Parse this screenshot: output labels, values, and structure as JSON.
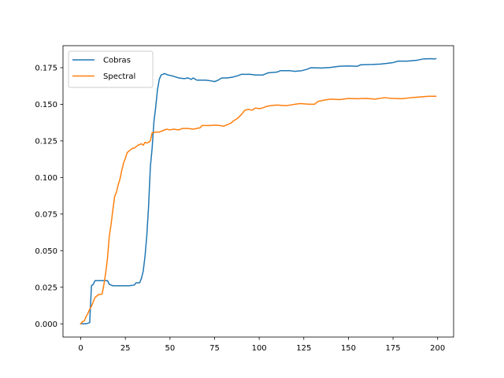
{
  "chart_data": {
    "type": "line",
    "title": "",
    "xlabel": "",
    "ylabel": "",
    "xlim": [
      -9.95,
      208.95
    ],
    "ylim": [
      -0.00905,
      0.19005
    ],
    "xticks": [
      0,
      25,
      50,
      75,
      100,
      125,
      150,
      175,
      200
    ],
    "yticks": [
      0.0,
      0.025,
      0.05,
      0.075,
      0.1,
      0.125,
      0.15,
      0.175
    ],
    "ytick_labels": [
      "0.000",
      "0.025",
      "0.050",
      "0.075",
      "0.100",
      "0.125",
      "0.150",
      "0.175"
    ],
    "grid": false,
    "legend_position": "upper-left",
    "series": [
      {
        "name": "Cobras",
        "color": "#1f77b4",
        "points": [
          [
            0,
            0.0
          ],
          [
            3,
            0.0
          ],
          [
            5,
            0.0008
          ],
          [
            6,
            0.026
          ],
          [
            7,
            0.027
          ],
          [
            8,
            0.0295
          ],
          [
            10,
            0.0295
          ],
          [
            13,
            0.0295
          ],
          [
            15,
            0.0295
          ],
          [
            16,
            0.027
          ],
          [
            18,
            0.026
          ],
          [
            22,
            0.026
          ],
          [
            27,
            0.026
          ],
          [
            30,
            0.0265
          ],
          [
            31,
            0.028
          ],
          [
            33,
            0.028
          ],
          [
            34,
            0.031
          ],
          [
            35,
            0.036
          ],
          [
            36,
            0.046
          ],
          [
            37,
            0.06
          ],
          [
            38,
            0.08
          ],
          [
            39,
            0.107
          ],
          [
            40,
            0.12
          ],
          [
            41,
            0.138
          ],
          [
            42,
            0.148
          ],
          [
            43,
            0.16
          ],
          [
            44,
            0.167
          ],
          [
            45,
            0.17
          ],
          [
            47,
            0.171
          ],
          [
            49,
            0.17
          ],
          [
            51,
            0.1695
          ],
          [
            55,
            0.168
          ],
          [
            58,
            0.1675
          ],
          [
            60,
            0.168
          ],
          [
            62,
            0.167
          ],
          [
            63,
            0.168
          ],
          [
            65,
            0.1665
          ],
          [
            70,
            0.1665
          ],
          [
            73,
            0.166
          ],
          [
            75,
            0.1655
          ],
          [
            77,
            0.1665
          ],
          [
            79,
            0.168
          ],
          [
            82,
            0.168
          ],
          [
            85,
            0.1685
          ],
          [
            88,
            0.1695
          ],
          [
            90,
            0.1705
          ],
          [
            95,
            0.1705
          ],
          [
            98,
            0.17
          ],
          [
            102,
            0.17
          ],
          [
            105,
            0.1715
          ],
          [
            110,
            0.172
          ],
          [
            112,
            0.173
          ],
          [
            117,
            0.173
          ],
          [
            120,
            0.1725
          ],
          [
            124,
            0.173
          ],
          [
            127,
            0.174
          ],
          [
            129,
            0.175
          ],
          [
            135,
            0.1748
          ],
          [
            140,
            0.1752
          ],
          [
            145,
            0.176
          ],
          [
            150,
            0.1762
          ],
          [
            155,
            0.176
          ],
          [
            157,
            0.177
          ],
          [
            163,
            0.1772
          ],
          [
            168,
            0.1775
          ],
          [
            172,
            0.178
          ],
          [
            175,
            0.1785
          ],
          [
            178,
            0.1795
          ],
          [
            183,
            0.1795
          ],
          [
            188,
            0.18
          ],
          [
            192,
            0.181
          ],
          [
            196,
            0.1812
          ],
          [
            198,
            0.181
          ],
          [
            199,
            0.1812
          ]
        ]
      },
      {
        "name": "Spectral",
        "color": "#ff7f0e",
        "points": [
          [
            0,
            0.0
          ],
          [
            1,
            0.0015
          ],
          [
            2,
            0.002
          ],
          [
            3,
            0.005
          ],
          [
            4,
            0.007
          ],
          [
            5,
            0.01
          ],
          [
            6,
            0.012
          ],
          [
            7,
            0.015
          ],
          [
            8,
            0.018
          ],
          [
            9,
            0.019
          ],
          [
            10,
            0.02
          ],
          [
            11,
            0.02
          ],
          [
            12,
            0.0205
          ],
          [
            13,
            0.027
          ],
          [
            14,
            0.035
          ],
          [
            15,
            0.045
          ],
          [
            16,
            0.06
          ],
          [
            17,
            0.068
          ],
          [
            18,
            0.078
          ],
          [
            19,
            0.087
          ],
          [
            20,
            0.09
          ],
          [
            21,
            0.095
          ],
          [
            22,
            0.099
          ],
          [
            23,
            0.105
          ],
          [
            24,
            0.11
          ],
          [
            25,
            0.113
          ],
          [
            26,
            0.117
          ],
          [
            27,
            0.118
          ],
          [
            28,
            0.119
          ],
          [
            29,
            0.12
          ],
          [
            30,
            0.12
          ],
          [
            31,
            0.121
          ],
          [
            32,
            0.122
          ],
          [
            33,
            0.1225
          ],
          [
            34,
            0.123
          ],
          [
            35,
            0.122
          ],
          [
            36,
            0.124
          ],
          [
            37,
            0.1235
          ],
          [
            38,
            0.124
          ],
          [
            39,
            0.125
          ],
          [
            40,
            0.1305
          ],
          [
            42,
            0.131
          ],
          [
            44,
            0.131
          ],
          [
            46,
            0.132
          ],
          [
            48,
            0.133
          ],
          [
            50,
            0.1325
          ],
          [
            52,
            0.133
          ],
          [
            55,
            0.1325
          ],
          [
            57,
            0.1335
          ],
          [
            60,
            0.1335
          ],
          [
            63,
            0.133
          ],
          [
            65,
            0.1335
          ],
          [
            67,
            0.134
          ],
          [
            68,
            0.1355
          ],
          [
            70,
            0.1355
          ],
          [
            73,
            0.1355
          ],
          [
            75,
            0.1358
          ],
          [
            78,
            0.1355
          ],
          [
            80,
            0.135
          ],
          [
            82,
            0.136
          ],
          [
            84,
            0.137
          ],
          [
            86,
            0.139
          ],
          [
            88,
            0.1405
          ],
          [
            90,
            0.143
          ],
          [
            92,
            0.146
          ],
          [
            94,
            0.1465
          ],
          [
            96,
            0.146
          ],
          [
            98,
            0.1475
          ],
          [
            100,
            0.147
          ],
          [
            102,
            0.1475
          ],
          [
            104,
            0.1485
          ],
          [
            106,
            0.149
          ],
          [
            110,
            0.1495
          ],
          [
            115,
            0.149
          ],
          [
            120,
            0.15
          ],
          [
            123,
            0.1505
          ],
          [
            128,
            0.15
          ],
          [
            131,
            0.15
          ],
          [
            133,
            0.152
          ],
          [
            137,
            0.153
          ],
          [
            140,
            0.1535
          ],
          [
            145,
            0.1532
          ],
          [
            150,
            0.154
          ],
          [
            155,
            0.1538
          ],
          [
            160,
            0.154
          ],
          [
            165,
            0.1535
          ],
          [
            170,
            0.1545
          ],
          [
            175,
            0.154
          ],
          [
            180,
            0.1538
          ],
          [
            185,
            0.1545
          ],
          [
            190,
            0.155
          ],
          [
            195,
            0.1555
          ],
          [
            199,
            0.1555
          ]
        ]
      }
    ]
  }
}
